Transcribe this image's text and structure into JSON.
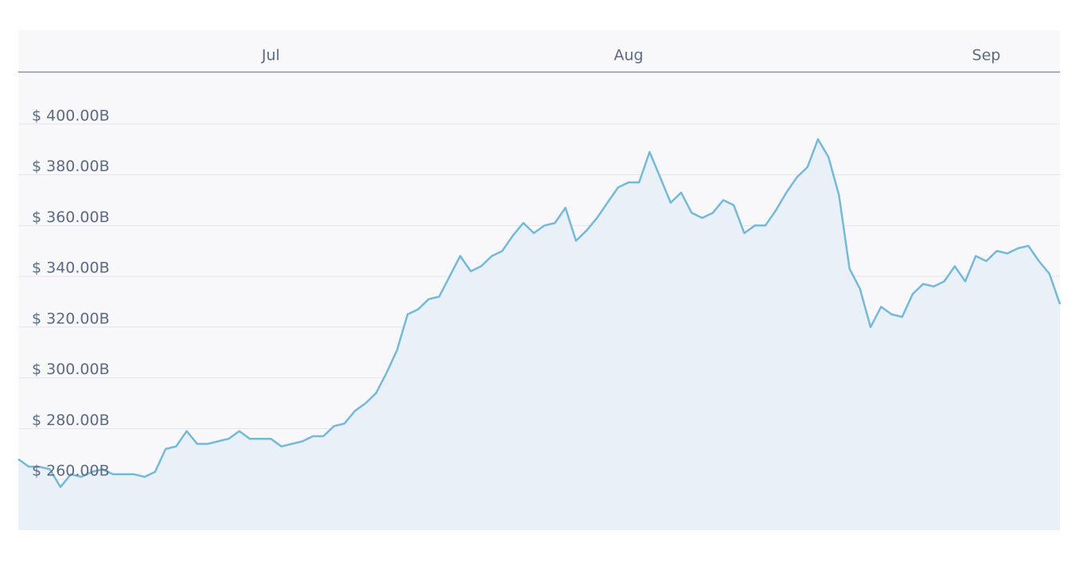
{
  "chart_data": {
    "type": "area",
    "categories": [
      null,
      null,
      null,
      null,
      null,
      null,
      null,
      null,
      null,
      null,
      null,
      null,
      null,
      null,
      null,
      null,
      null,
      null,
      null,
      null,
      null,
      null,
      null,
      null,
      "Jul",
      null,
      null,
      null,
      null,
      null,
      null,
      null,
      null,
      null,
      null,
      null,
      null,
      null,
      null,
      null,
      null,
      null,
      null,
      null,
      null,
      null,
      null,
      null,
      null,
      null,
      null,
      null,
      null,
      null,
      null,
      null,
      null,
      null,
      "Aug",
      null,
      null,
      null,
      null,
      null,
      null,
      null,
      null,
      null,
      null,
      null,
      null,
      null,
      null,
      null,
      null,
      null,
      null,
      null,
      null,
      null,
      null,
      null,
      null,
      null,
      null,
      null,
      null,
      null,
      null,
      null,
      null,
      null,
      "Sep",
      null,
      null,
      null,
      null,
      null,
      null,
      null
    ],
    "values": [
      268,
      265,
      265,
      264,
      257,
      262,
      261,
      263,
      264,
      262,
      262,
      262,
      261,
      263,
      272,
      273,
      279,
      274,
      274,
      275,
      276,
      279,
      276,
      276,
      276,
      273,
      274,
      275,
      277,
      277,
      281,
      282,
      287,
      290,
      294,
      302,
      311,
      325,
      327,
      331,
      332,
      340,
      348,
      342,
      344,
      348,
      350,
      356,
      361,
      357,
      360,
      361,
      367,
      354,
      358,
      363,
      369,
      375,
      377,
      377,
      389,
      379,
      369,
      373,
      365,
      363,
      365,
      370,
      368,
      357,
      360,
      360,
      366,
      373,
      379,
      383,
      394,
      387,
      372,
      343,
      335,
      320,
      328,
      325,
      324,
      333,
      337,
      336,
      338,
      344,
      338,
      348,
      346,
      350,
      349,
      351,
      352,
      346,
      341,
      329
    ],
    "color": "#74b9da",
    "ylim": [
      240,
      420
    ],
    "yticks": [
      {
        "value": 260,
        "label": "$ 260.00B"
      },
      {
        "value": 280,
        "label": "$ 280.00B"
      },
      {
        "value": 300,
        "label": "$ 300.00B"
      },
      {
        "value": 320,
        "label": "$ 320.00B"
      },
      {
        "value": 340,
        "label": "$ 340.00B"
      },
      {
        "value": 360,
        "label": "$ 360.00B"
      },
      {
        "value": 380,
        "label": "$ 380.00B"
      },
      {
        "value": 400,
        "label": "$ 400.00B"
      }
    ],
    "grid": true
  }
}
